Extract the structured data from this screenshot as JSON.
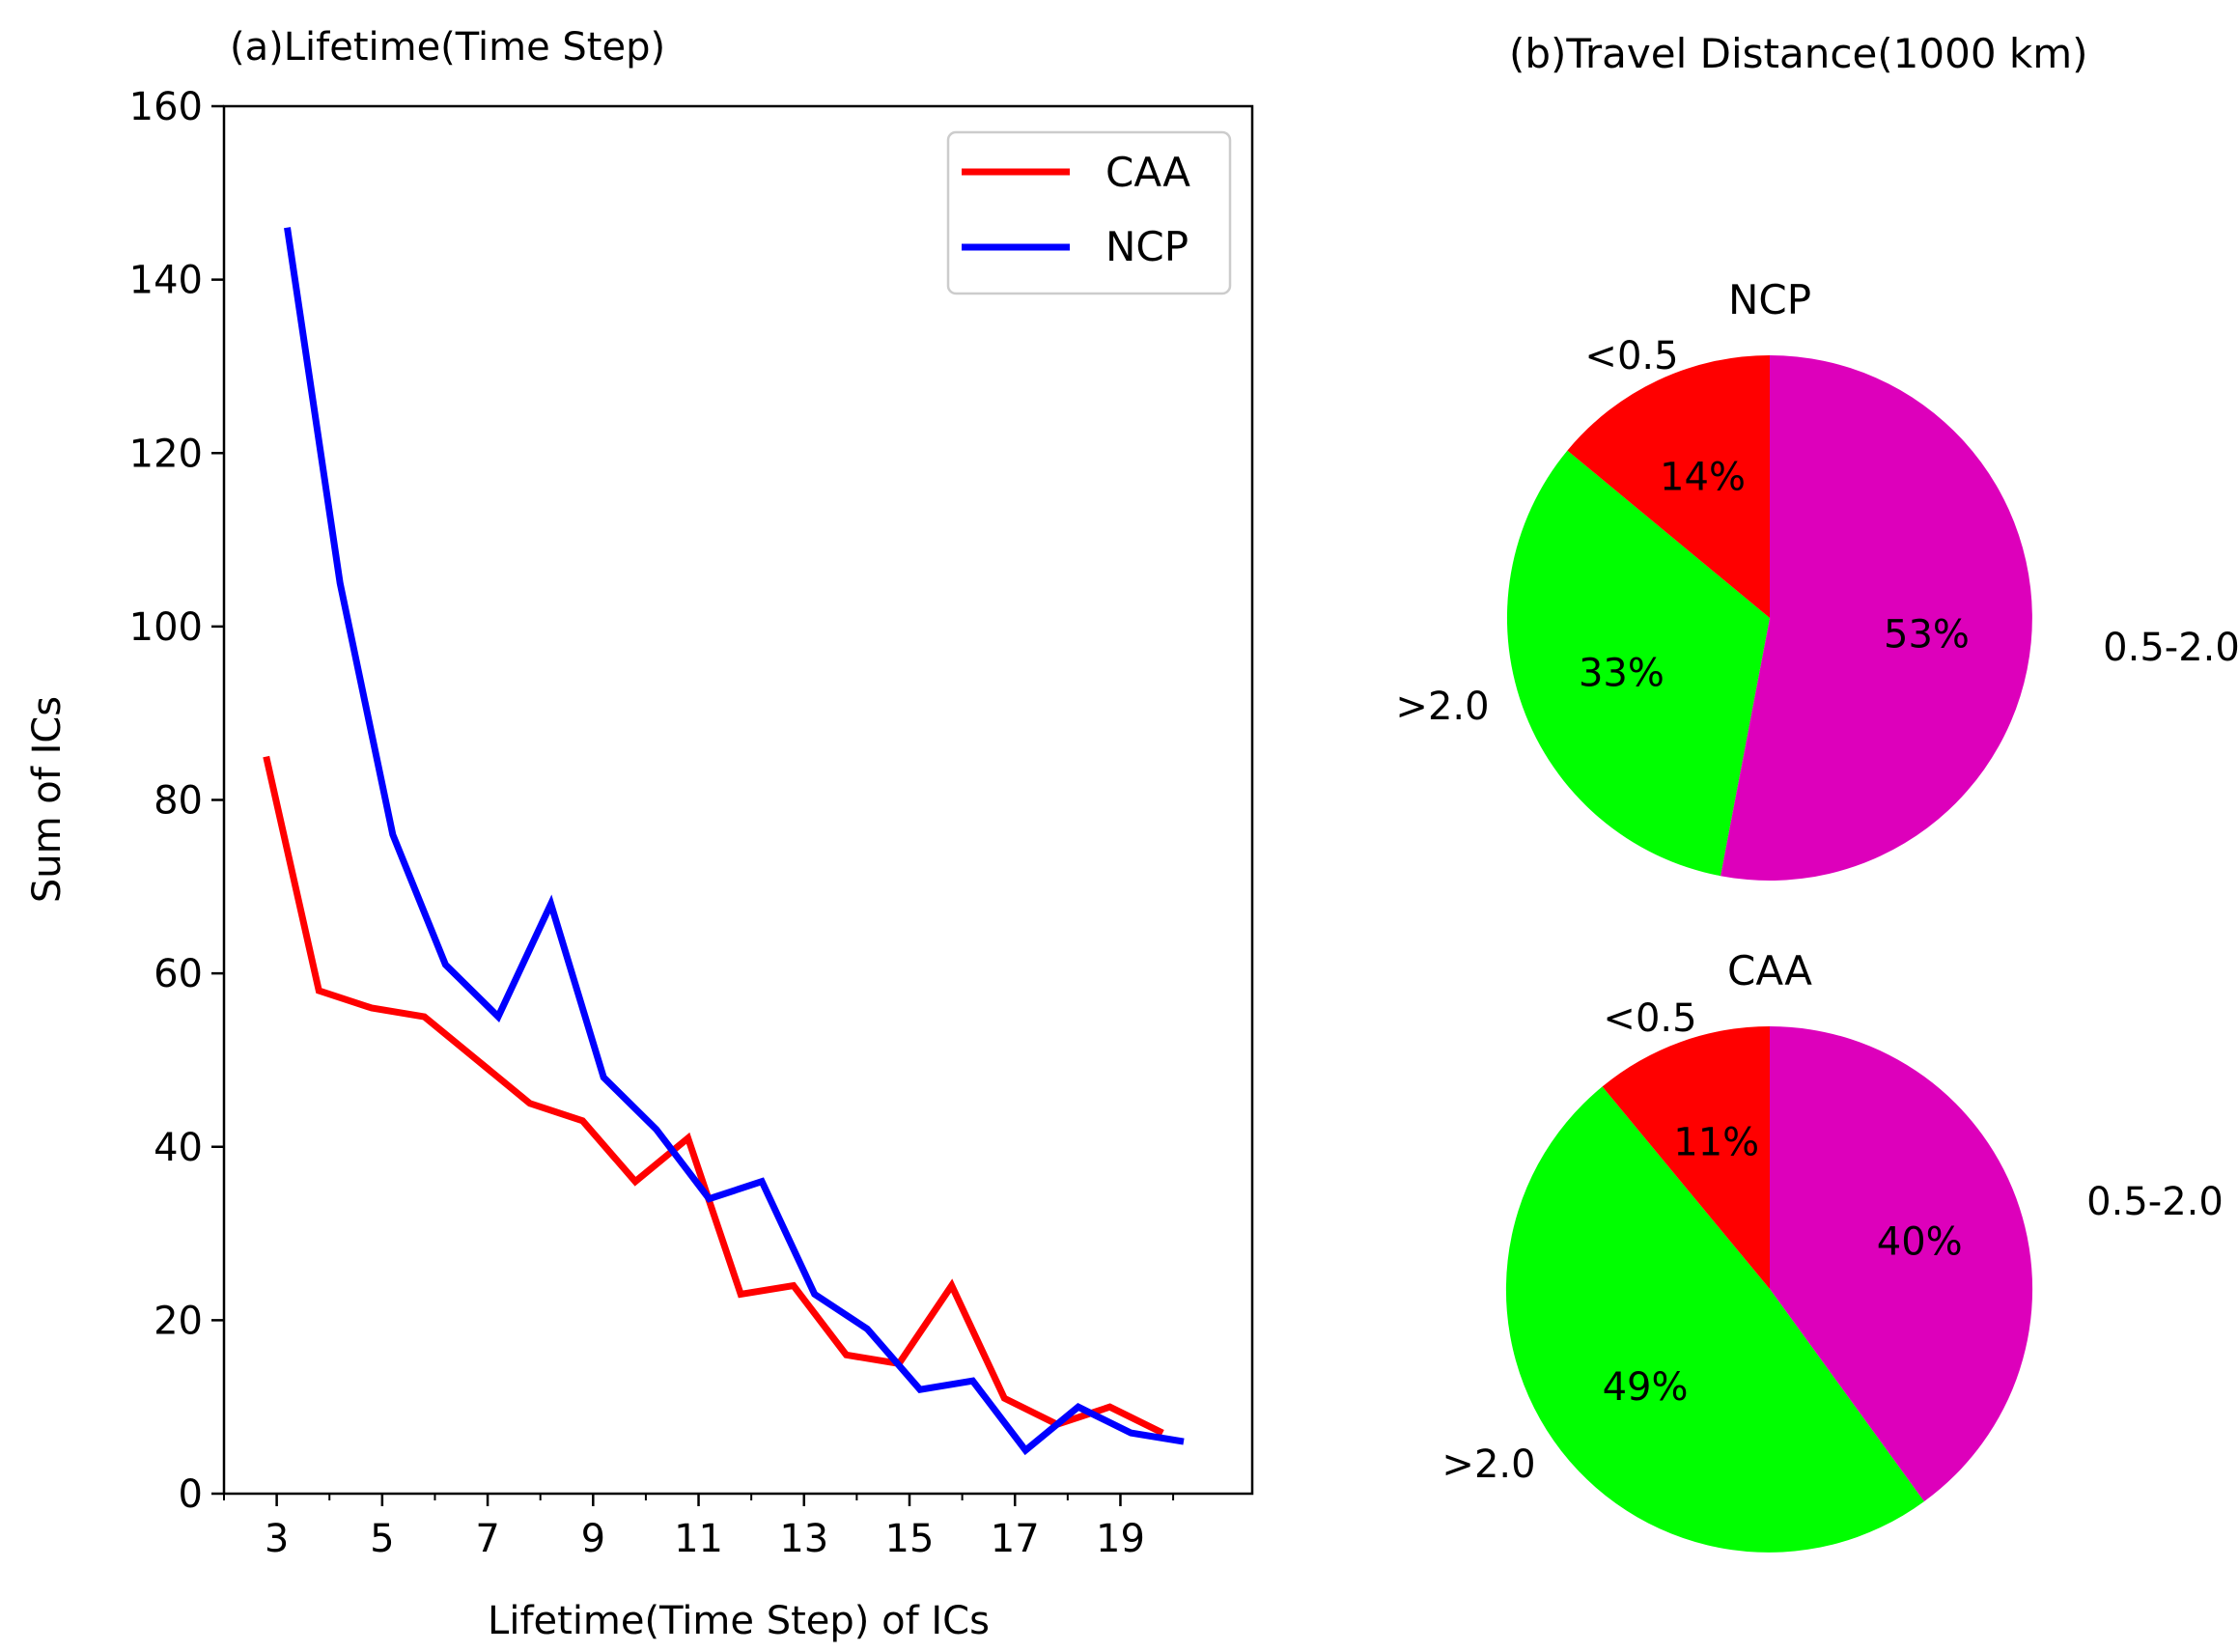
{
  "chart_data": [
    {
      "type": "line",
      "title": "(a)Lifetime(Time Step)",
      "xlabel": "Lifetime(Time Step) of ICs",
      "ylabel": "Sum of ICs",
      "xlim": [
        2.0,
        21.5
      ],
      "ylim": [
        0,
        160
      ],
      "xticks": [
        "3",
        "5",
        "7",
        "9",
        "11",
        "13",
        "15",
        "17",
        "19"
      ],
      "yticks": [
        "0",
        "20",
        "40",
        "60",
        "80",
        "100",
        "120",
        "140",
        "160"
      ],
      "legend_position": "top-right",
      "series": [
        {
          "name": "CAA",
          "color": "#ff0000",
          "x": [
            2.8,
            3.8,
            4.8,
            5.8,
            6.8,
            7.8,
            8.8,
            9.8,
            10.8,
            11.8,
            12.8,
            13.8,
            14.8,
            15.8,
            16.8,
            17.8,
            18.8,
            19.8
          ],
          "y": [
            85,
            58,
            56,
            55,
            50,
            45,
            43,
            36,
            41,
            23,
            24,
            16,
            15,
            24,
            11,
            8,
            10,
            7
          ]
        },
        {
          "name": "NCP",
          "color": "#0000ff",
          "x": [
            3.2,
            4.2,
            5.2,
            6.2,
            7.2,
            8.2,
            9.2,
            10.2,
            11.2,
            12.2,
            13.2,
            14.2,
            15.2,
            16.2,
            17.2,
            18.2,
            19.2,
            20.2
          ],
          "y": [
            146,
            105,
            76,
            61,
            55,
            68,
            48,
            42,
            34,
            36,
            23,
            19,
            12,
            13,
            5,
            10,
            7,
            6
          ]
        }
      ]
    },
    {
      "type": "pie",
      "title": "(b)Travel Distance(1000 km)",
      "panels": [
        {
          "name": "NCP",
          "slices": [
            {
              "label": "0.5-2.0",
              "value": 53,
              "pct": "53%",
              "color": "#dd00bb"
            },
            {
              "label": ">2.0",
              "value": 33,
              "pct": "33%",
              "color": "#00ff00"
            },
            {
              "label": "<0.5",
              "value": 14,
              "pct": "14%",
              "color": "#ff0000"
            }
          ]
        },
        {
          "name": "CAA",
          "slices": [
            {
              "label": "0.5-2.0",
              "value": 40,
              "pct": "40%",
              "color": "#dd00bb"
            },
            {
              "label": ">2.0",
              "value": 49,
              "pct": "49%",
              "color": "#00ff00"
            },
            {
              "label": "<0.5",
              "value": 11,
              "pct": "11%",
              "color": "#ff0000"
            }
          ]
        }
      ]
    }
  ]
}
